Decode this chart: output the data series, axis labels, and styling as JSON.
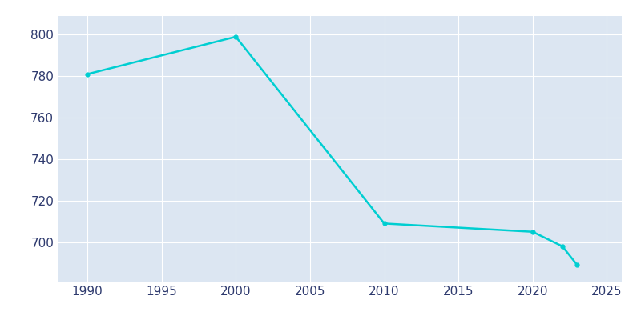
{
  "years": [
    1990,
    2000,
    2010,
    2020,
    2022,
    2023
  ],
  "population": [
    781,
    799,
    709,
    705,
    698,
    689
  ],
  "line_color": "#00CED1",
  "marker_color": "#00CED1",
  "bg_color": "#FFFFFF",
  "plot_bg_color": "#DCE6F2",
  "grid_color": "#FFFFFF",
  "tick_label_color": "#2E3A6E",
  "xlim": [
    1988,
    2026
  ],
  "ylim": [
    681,
    809
  ],
  "yticks": [
    700,
    720,
    740,
    760,
    780,
    800
  ],
  "xticks": [
    1990,
    1995,
    2000,
    2005,
    2010,
    2015,
    2020,
    2025
  ],
  "linewidth": 1.8,
  "marker_size": 3.5
}
